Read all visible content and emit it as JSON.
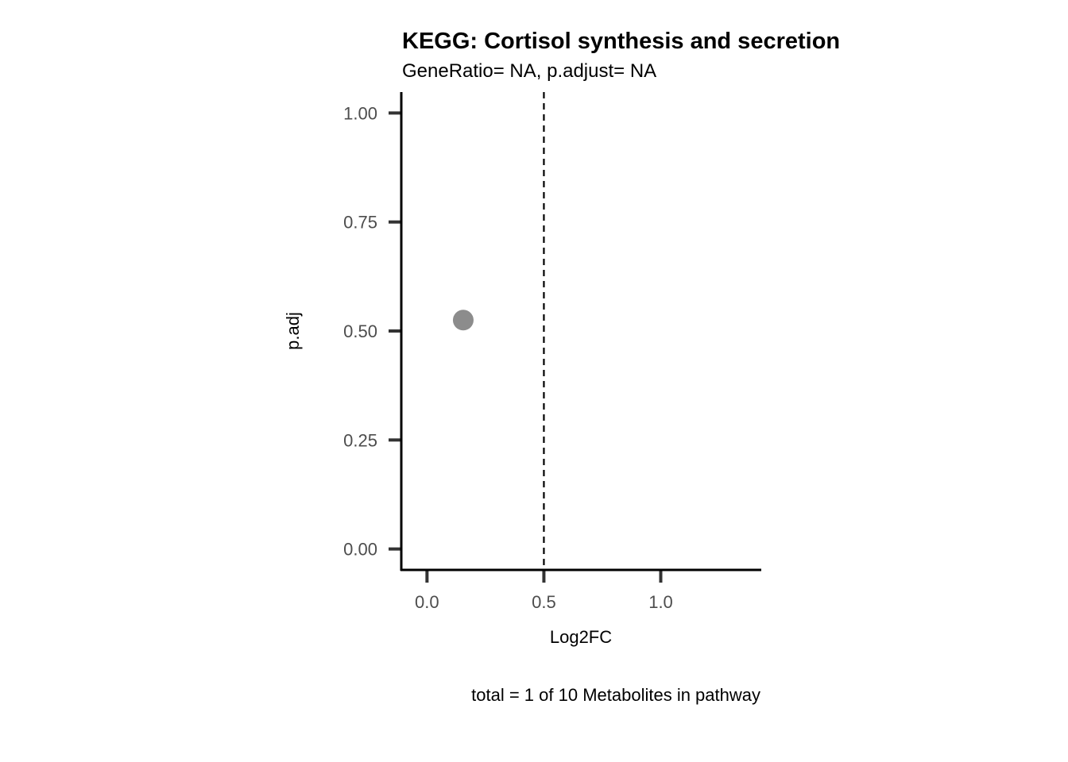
{
  "chart_data": {
    "type": "scatter",
    "title": "KEGG: Cortisol synthesis and secretion",
    "subtitle": "GeneRatio= NA, p.adjust= NA",
    "xlabel": "Log2FC",
    "ylabel": "p.adj",
    "caption": "total = 1 of 10 Metabolites in pathway",
    "xlim": [
      -0.11,
      1.43
    ],
    "ylim": [
      -0.048,
      1.048
    ],
    "x_ticks": [
      0.0,
      0.5,
      1.0
    ],
    "x_tick_labels": [
      "0.0",
      "0.5",
      "1.0"
    ],
    "y_ticks": [
      0.0,
      0.25,
      0.5,
      0.75,
      1.0
    ],
    "y_tick_labels": [
      "0.00",
      "0.25",
      "0.50",
      "0.75",
      "1.00"
    ],
    "reference_lines": [
      {
        "orientation": "vertical",
        "x": 0.5,
        "style": "dashed"
      }
    ],
    "points": [
      {
        "x": 0.155,
        "y": 0.525
      }
    ],
    "point_color": "#8c8c8c",
    "grid": false,
    "legend": "none"
  }
}
